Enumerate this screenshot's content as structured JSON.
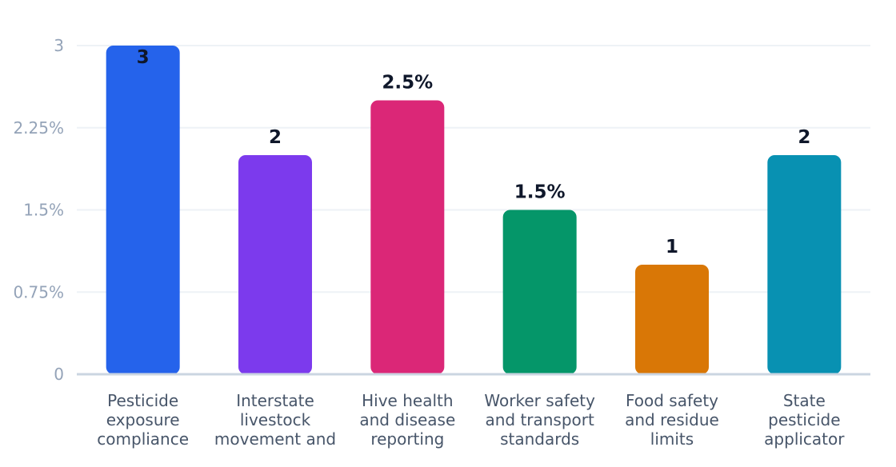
{
  "chart_data": {
    "type": "bar",
    "title": "",
    "xlabel": "",
    "ylabel": "",
    "ylim": [
      0,
      3
    ],
    "yticks": [
      {
        "value": 0,
        "label": "0"
      },
      {
        "value": 0.75,
        "label": "0.75%"
      },
      {
        "value": 1.5,
        "label": "1.5%"
      },
      {
        "value": 2.25,
        "label": "2.25%"
      },
      {
        "value": 3,
        "label": "3"
      }
    ],
    "categories": [
      [
        "Pesticide",
        "exposure",
        "compliance"
      ],
      [
        "Interstate",
        "livestock",
        "movement and"
      ],
      [
        "Hive health",
        "and disease",
        "reporting"
      ],
      [
        "Worker safety",
        "and transport",
        "standards"
      ],
      [
        "Food safety",
        "and residue",
        "limits"
      ],
      [
        "State",
        "pesticide",
        "applicator"
      ]
    ],
    "values": [
      3,
      2,
      2.5,
      1.5,
      1,
      2
    ],
    "data_labels": [
      "3",
      "2",
      "2.5%",
      "1.5%",
      "1",
      "2"
    ],
    "colors": [
      "#2563eb",
      "#7c3aed",
      "#db2777",
      "#059669",
      "#d97706",
      "#0891b2"
    ],
    "grid": true,
    "legend": "none"
  }
}
